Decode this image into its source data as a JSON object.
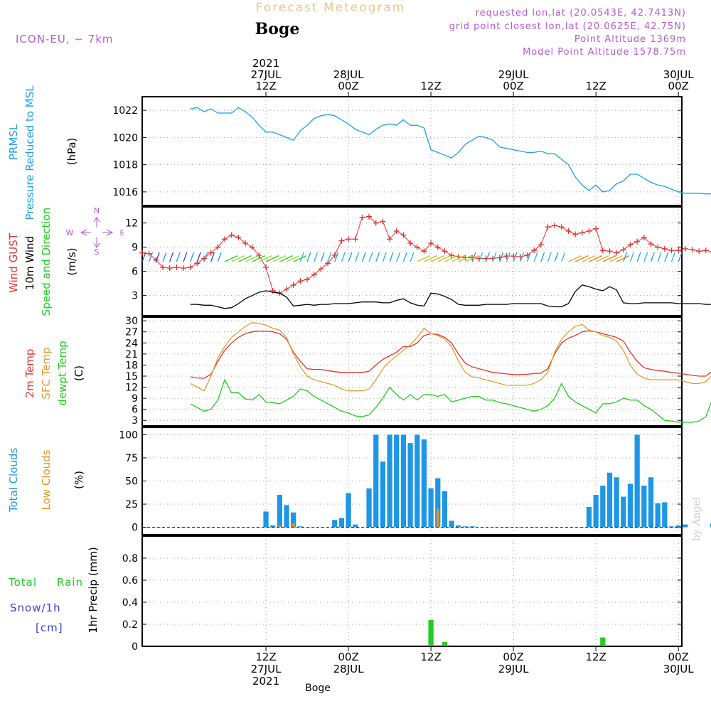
{
  "header": {
    "title": "Forecast Meteogram",
    "location": "Boge",
    "model": "ICON-EU, ~ 7km",
    "requested": "requested lon,lat (20.0543E, 42.7413N)",
    "grid_point": "grid point closest lon,lat (20.0625E, 42.75N)",
    "point_altitude": "Point Altitude 1369m",
    "model_altitude": "Model Point Altitude 1578.75m",
    "bottom_label": "Boge",
    "credit": "by Angel"
  },
  "colors": {
    "pressure": "#1aa0e6",
    "gust": "#e63232",
    "wind": "#000000",
    "dir": "#22cc22",
    "temp2m": "#e63232",
    "sfc": "#e0a030",
    "dewpt": "#22cc22",
    "total_clouds": "#1e96e6",
    "low_clouds": "#dc9628",
    "rain": "#22cc22",
    "snow": "#3c3ce6",
    "purple": "#b45ad2"
  },
  "time_axis": {
    "range_hours": [
      -18,
      60.5
    ],
    "ticks": [
      {
        "h": 0,
        "top": [
          "2021",
          "27JUL",
          "12Z"
        ],
        "bottom": [
          "12Z",
          "27JUL",
          "2021"
        ]
      },
      {
        "h": 12,
        "top": [
          "28JUL",
          "00Z"
        ],
        "bottom": [
          "00Z",
          "28JUL"
        ]
      },
      {
        "h": 24,
        "top": [
          "12Z"
        ],
        "bottom": [
          "12Z"
        ]
      },
      {
        "h": 36,
        "top": [
          "29JUL",
          "00Z"
        ],
        "bottom": [
          "00Z",
          "29JUL"
        ]
      },
      {
        "h": 48,
        "top": [
          "12Z"
        ],
        "bottom": [
          "12Z"
        ]
      },
      {
        "h": 60,
        "top": [
          "30JUL",
          "00Z"
        ],
        "bottom": [
          "00Z",
          "30JUL"
        ]
      }
    ]
  },
  "chart_data": [
    {
      "type": "line",
      "label_lines": [
        "PRMSL",
        "Pressure Reduced to MSL"
      ],
      "unit": "(hPa)",
      "ylim": [
        1015,
        1023
      ],
      "yticks": [
        1016,
        1018,
        1020,
        1022
      ],
      "grid": true,
      "x": [
        -11,
        -10,
        -9,
        -8,
        -7,
        -6,
        -5,
        -4,
        -3,
        -2,
        -1,
        0,
        1,
        2,
        3,
        4,
        5,
        6,
        7,
        8,
        9,
        10,
        11,
        12,
        13,
        14,
        15,
        16,
        17,
        18,
        19,
        20,
        21,
        22,
        23,
        24,
        25,
        26,
        27,
        28,
        29,
        30,
        31,
        32,
        33,
        34,
        35,
        36,
        37,
        38,
        39,
        40,
        41,
        42,
        43,
        44,
        45,
        46,
        47,
        48,
        49,
        50,
        51,
        52,
        53,
        54,
        55,
        56,
        57,
        58,
        59,
        60,
        61,
        62,
        63,
        64,
        65
      ],
      "series": [
        {
          "name": "",
          "values": [
            1022.1,
            1022.2,
            1021.9,
            1022.1,
            1021.8,
            1021.8,
            1021.8,
            1022.2,
            1021.9,
            1021.5,
            1020.9,
            1020.4,
            1020.4,
            1020.2,
            1020.0,
            1019.8,
            1020.5,
            1020.9,
            1021.4,
            1021.6,
            1021.7,
            1021.6,
            1021.3,
            1021.0,
            1020.6,
            1020.4,
            1020.2,
            1020.6,
            1020.9,
            1021.0,
            1020.9,
            1021.3,
            1020.9,
            1020.9,
            1020.7,
            1019.1,
            1018.9,
            1018.7,
            1018.5,
            1018.9,
            1019.5,
            1019.8,
            1020.1,
            1020.0,
            1019.8,
            1019.3,
            1019.2,
            1019.1,
            1019.0,
            1018.9,
            1018.9,
            1019.0,
            1018.8,
            1018.8,
            1018.4,
            1018.0,
            1017.1,
            1016.5,
            1016.1,
            1016.5,
            1016.0,
            1016.1,
            1016.6,
            1016.8,
            1017.3,
            1017.3,
            1017.0,
            1016.7,
            1016.5,
            1016.4,
            1016.2,
            1016.0,
            1015.9,
            1015.9,
            1015.9,
            1015.85,
            1015.85
          ]
        }
      ]
    },
    {
      "type": "line",
      "label_lines": [
        "Wind GUST",
        "10m Wind",
        "Speed and Direction"
      ],
      "unit": "(m/s)",
      "compass": [
        "N",
        "S",
        "W",
        "E"
      ],
      "ylim": [
        0.5,
        14
      ],
      "yticks": [
        3,
        6,
        9,
        12
      ],
      "grid": true,
      "series": [
        {
          "name": "Wind GUST",
          "x": [
            -18,
            -17,
            -16,
            -15,
            -14,
            -13,
            -12,
            -11,
            -10,
            -9,
            -8,
            -7,
            -6,
            -5,
            -4,
            -3,
            -2,
            -1,
            0,
            1,
            2,
            3,
            4,
            5,
            6,
            7,
            8,
            9,
            10,
            11,
            12,
            13,
            14,
            15,
            16,
            17,
            18,
            19,
            20,
            21,
            22,
            23,
            24,
            25,
            26,
            27,
            28,
            29,
            30,
            31,
            32,
            33,
            34,
            35,
            36,
            37,
            38,
            39,
            40,
            41,
            42,
            43,
            44,
            45,
            46,
            47,
            48,
            49,
            50,
            51,
            52,
            53,
            54,
            55,
            56,
            57,
            58,
            59,
            60,
            61,
            62,
            63,
            64,
            65
          ],
          "values": [
            8.3,
            8.2,
            7.4,
            6.5,
            6.4,
            6.5,
            6.4,
            6.5,
            7.0,
            7.6,
            8.3,
            9.0,
            10.0,
            10.5,
            10.2,
            9.5,
            9.0,
            8.0,
            6.5,
            3.6,
            3.3,
            3.8,
            4.3,
            4.8,
            5.0,
            5.6,
            6.3,
            7.0,
            8.0,
            9.8,
            10.0,
            10.0,
            12.7,
            12.8,
            12.0,
            12.2,
            10.0,
            11.0,
            10.5,
            9.5,
            9.0,
            8.5,
            9.5,
            9.0,
            8.5,
            8.0,
            7.8,
            7.7,
            7.7,
            7.6,
            7.6,
            7.6,
            7.7,
            7.9,
            7.9,
            7.8,
            8.0,
            8.6,
            9.3,
            11.5,
            11.7,
            11.5,
            11.0,
            10.6,
            10.8,
            11.0,
            11.3,
            8.6,
            8.5,
            8.3,
            8.7,
            9.3,
            9.7,
            10.2,
            9.4,
            9.0,
            8.8,
            8.6,
            8.6,
            8.8,
            8.7,
            8.5,
            8.6,
            8.4
          ]
        },
        {
          "name": "10m Wind",
          "x": [
            -11,
            -10,
            -9,
            -8,
            -7,
            -6,
            -5,
            -4,
            -3,
            -2,
            -1,
            0,
            1,
            2,
            3,
            4,
            5,
            6,
            7,
            8,
            9,
            10,
            11,
            12,
            13,
            14,
            15,
            16,
            17,
            18,
            19,
            20,
            21,
            22,
            23,
            24,
            25,
            26,
            27,
            28,
            29,
            30,
            31,
            32,
            33,
            34,
            35,
            36,
            37,
            38,
            39,
            40,
            41,
            42,
            43,
            44,
            45,
            46,
            47,
            48,
            49,
            50,
            51,
            52,
            53,
            54,
            55,
            56,
            57,
            58,
            59,
            60,
            61,
            62,
            63,
            64,
            65
          ],
          "values": [
            1.9,
            1.9,
            1.8,
            1.8,
            1.6,
            1.4,
            1.5,
            2.0,
            2.6,
            3.0,
            3.4,
            3.6,
            3.4,
            3.3,
            2.8,
            1.7,
            1.8,
            1.9,
            1.8,
            1.9,
            1.9,
            2.0,
            2.0,
            2.0,
            2.1,
            2.2,
            2.2,
            2.2,
            2.1,
            2.1,
            2.4,
            2.6,
            2.1,
            1.8,
            1.7,
            3.3,
            3.2,
            2.9,
            2.5,
            1.9,
            1.8,
            1.8,
            1.8,
            1.9,
            1.9,
            1.9,
            1.9,
            2.0,
            2.0,
            2.0,
            2.0,
            2.0,
            1.7,
            1.6,
            1.6,
            2.0,
            3.5,
            4.3,
            4.1,
            3.8,
            3.6,
            4.1,
            3.7,
            2.1,
            2.0,
            2.0,
            2.1,
            2.1,
            2.1,
            2.1,
            2.1,
            2.0,
            2.0,
            2.0,
            2.0,
            1.9,
            1.9
          ]
        }
      ]
    },
    {
      "type": "line",
      "label_lines": [
        "2m Temp",
        "SFC Temp",
        "dewpt Temp"
      ],
      "unit": "(C)",
      "ylim": [
        1.5,
        31
      ],
      "yticks": [
        3,
        6,
        9,
        12,
        15,
        18,
        21,
        24,
        27,
        30
      ],
      "grid": true,
      "x": [
        -11,
        -10,
        -9,
        -8,
        -7,
        -6,
        -5,
        -4,
        -3,
        -2,
        -1,
        0,
        1,
        2,
        3,
        4,
        5,
        6,
        7,
        8,
        9,
        10,
        11,
        12,
        13,
        14,
        15,
        16,
        17,
        18,
        19,
        20,
        21,
        22,
        23,
        24,
        25,
        26,
        27,
        28,
        29,
        30,
        31,
        32,
        33,
        34,
        35,
        36,
        37,
        38,
        39,
        40,
        41,
        42,
        43,
        44,
        45,
        46,
        47,
        48,
        49,
        50,
        51,
        52,
        53,
        54,
        55,
        56,
        57,
        58,
        59,
        60,
        61,
        62,
        63,
        64,
        65
      ],
      "series": [
        {
          "name": "2m Temp",
          "values": [
            14.8,
            14.5,
            14.4,
            15.5,
            19.0,
            22.0,
            24.0,
            25.5,
            26.5,
            27.0,
            27.2,
            27.2,
            27.0,
            26.5,
            25.0,
            21.5,
            19.0,
            17.0,
            16.8,
            16.8,
            16.5,
            16.2,
            16.0,
            16.0,
            16.0,
            16.0,
            16.3,
            18.0,
            19.5,
            20.5,
            21.5,
            23.0,
            23.0,
            24.0,
            26.0,
            26.5,
            26.3,
            25.5,
            24.0,
            21.0,
            18.5,
            17.5,
            17.0,
            16.5,
            16.0,
            15.8,
            15.6,
            15.4,
            15.4,
            15.5,
            15.7,
            15.8,
            17.0,
            21.0,
            24.0,
            25.3,
            26.0,
            27.0,
            27.3,
            27.0,
            26.5,
            26.0,
            25.5,
            24.5,
            21.5,
            19.0,
            17.3,
            16.8,
            16.5,
            16.3,
            16.0,
            15.8,
            15.5,
            15.2,
            15.0,
            15.0,
            16.5
          ]
        },
        {
          "name": "SFC Temp",
          "values": [
            13.0,
            12.0,
            11.0,
            15.0,
            20.0,
            23.0,
            25.5,
            27.0,
            28.5,
            29.5,
            29.3,
            28.8,
            28.0,
            27.5,
            25.5,
            21.0,
            17.5,
            15.0,
            14.0,
            13.5,
            13.0,
            12.5,
            11.5,
            11.0,
            11.0,
            11.0,
            11.5,
            14.0,
            17.0,
            19.0,
            20.5,
            22.0,
            23.5,
            25.5,
            28.0,
            26.5,
            26.0,
            25.0,
            23.0,
            19.0,
            16.0,
            14.8,
            14.5,
            14.0,
            13.5,
            13.0,
            12.5,
            12.5,
            12.5,
            12.5,
            13.0,
            14.0,
            16.0,
            21.5,
            25.0,
            27.0,
            28.5,
            29.0,
            27.5,
            27.0,
            26.0,
            25.5,
            24.5,
            22.0,
            18.0,
            15.5,
            14.5,
            14.0,
            14.0,
            14.0,
            14.0,
            14.0,
            13.5,
            13.0,
            13.0,
            13.5,
            15.5
          ]
        },
        {
          "name": "dewpt Temp",
          "values": [
            7.5,
            6.5,
            5.5,
            6.0,
            8.5,
            14.0,
            10.5,
            10.5,
            8.8,
            8.5,
            10.0,
            8.0,
            7.8,
            7.5,
            8.5,
            9.5,
            11.5,
            11.0,
            9.5,
            8.5,
            7.5,
            6.5,
            5.5,
            5.0,
            4.2,
            4.0,
            4.5,
            6.5,
            9.0,
            12.0,
            10.0,
            8.5,
            10.0,
            8.5,
            10.0,
            10.0,
            9.5,
            10.0,
            8.0,
            8.5,
            9.0,
            9.5,
            9.5,
            8.5,
            8.5,
            7.8,
            7.5,
            7.0,
            6.5,
            6.0,
            5.5,
            6.0,
            7.0,
            9.0,
            13.0,
            9.5,
            8.0,
            7.0,
            6.0,
            5.0,
            7.5,
            7.5,
            8.0,
            9.0,
            8.5,
            8.5,
            7.0,
            6.0,
            4.5,
            3.0,
            2.8,
            2.5,
            2.5,
            2.5,
            2.8,
            4.0,
            9.0
          ]
        }
      ]
    },
    {
      "type": "bar",
      "label_lines": [
        "Total Clouds",
        "Low Clouds"
      ],
      "unit": "(%)",
      "ylim": [
        -8,
        108
      ],
      "yticks": [
        0,
        25,
        50,
        75,
        100
      ],
      "grid": true,
      "x": [
        0,
        1,
        2,
        3,
        4,
        5,
        10,
        11,
        12,
        13,
        15,
        16,
        17,
        18,
        19,
        20,
        21,
        22,
        23,
        24,
        25,
        26,
        27,
        28,
        29,
        30,
        47,
        48,
        49,
        50,
        51,
        52,
        53,
        54,
        55,
        56,
        57,
        58,
        59,
        60,
        61,
        65
      ],
      "series": [
        {
          "name": "Total Clouds",
          "values": [
            17,
            2,
            35,
            24,
            16,
            1,
            8,
            10,
            37,
            3,
            42,
            100,
            71,
            100,
            100,
            100,
            91,
            100,
            95,
            42,
            53,
            39,
            7,
            2,
            1,
            1,
            22,
            35,
            45,
            59,
            54,
            33,
            47,
            100,
            45,
            54,
            26,
            27,
            1,
            2,
            3,
            4
          ]
        },
        {
          "name": "Low Clouds",
          "values": [
            0,
            0,
            2,
            0,
            4,
            0,
            0,
            0,
            0,
            0,
            0,
            0,
            0,
            0,
            0,
            0,
            0,
            0,
            0,
            0,
            20,
            0,
            0,
            0,
            0,
            0,
            0,
            0,
            0,
            0,
            0,
            0,
            0,
            0,
            0,
            0,
            0,
            0,
            0,
            0,
            0,
            0
          ]
        }
      ]
    },
    {
      "type": "bar",
      "label_lines": [
        "Total",
        "Rain",
        "Snow/1h",
        "[cm]"
      ],
      "unit": "1hr Precip (mm)",
      "ylim": [
        0,
        1.0
      ],
      "yticks": [
        0,
        0.2,
        0.4,
        0.6,
        0.8
      ],
      "grid": true,
      "x": [
        24,
        26,
        27,
        49
      ],
      "series": [
        {
          "name": "Total Rain",
          "values": [
            0.24,
            0.04,
            0.01,
            0.08
          ]
        }
      ]
    }
  ]
}
